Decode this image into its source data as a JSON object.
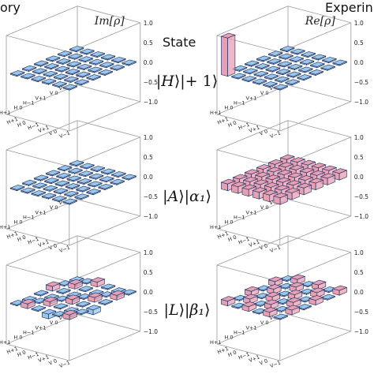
{
  "headers": {
    "left": "ory",
    "right": "Experin",
    "state_column": "State"
  },
  "colors": {
    "positive_bar": "#e6a0b4",
    "negative_bar": "#9ac6ec",
    "bar_edge": "#1a2a5a",
    "box_edge": "#9a9a9a"
  },
  "chart_data": [
    {
      "type": "bar3d",
      "panel": "Theory, row 1",
      "title": "Im[ρ]",
      "zlim": [
        -1.0,
        1.0
      ],
      "z_ticks": [
        "1.0",
        "0.5",
        "0.0",
        "−0.5",
        "−1.0"
      ],
      "x_ticks": [
        "H+1",
        "H 0",
        "H−1",
        "V+1",
        "V 0",
        "V−1"
      ],
      "y_ticks": [
        "H+1",
        "H 0",
        "H−1",
        "V+1",
        "V 0",
        "V−1"
      ],
      "values": [
        [
          0,
          0,
          0,
          0,
          0,
          0
        ],
        [
          0,
          0,
          0,
          0,
          0,
          0
        ],
        [
          0,
          0,
          0,
          0,
          0,
          0
        ],
        [
          0,
          0,
          0,
          0,
          0,
          0
        ],
        [
          0,
          0,
          0,
          0,
          0,
          0
        ],
        [
          0,
          0,
          0,
          0,
          0,
          0
        ]
      ]
    },
    {
      "type": "bar3d",
      "panel": "Experiment, row 1",
      "title": "Re[ρ]",
      "zlim": [
        -1.0,
        1.0
      ],
      "z_ticks": [
        "1.0",
        "0.5",
        "0.0",
        "−0.5",
        "−1.0"
      ],
      "x_ticks": [
        "H+1",
        "H 0",
        "H−1",
        "V+1",
        "V 0",
        "V−1"
      ],
      "y_ticks": [
        "H+1",
        "H 0",
        "H−1",
        "V+1",
        "V 0",
        "V−1"
      ],
      "values": [
        [
          0.97,
          0,
          0,
          0,
          0,
          0
        ],
        [
          0,
          0,
          0,
          0,
          0,
          0
        ],
        [
          0,
          0,
          0,
          0,
          0,
          0
        ],
        [
          0,
          0,
          0,
          0,
          0,
          0
        ],
        [
          0,
          0,
          0,
          0,
          0,
          0
        ],
        [
          0,
          0,
          0,
          0,
          0,
          0
        ]
      ]
    },
    {
      "type": "bar3d",
      "panel": "Theory, row 2",
      "zlim": [
        -1.0,
        1.0
      ],
      "z_ticks": [
        "1.0",
        "0.5",
        "0.0",
        "−0.5",
        "−1.0"
      ],
      "x_ticks": [
        "H+1",
        "H 0",
        "H−1",
        "V+1",
        "V 0",
        "V−1"
      ],
      "y_ticks": [
        "H+1",
        "H 0",
        "H−1",
        "V+1",
        "V 0",
        "V−1"
      ],
      "values": [
        [
          0,
          0,
          0,
          0,
          0,
          0
        ],
        [
          0,
          0,
          0,
          0,
          0,
          0
        ],
        [
          0,
          0,
          0,
          0,
          0,
          0
        ],
        [
          0,
          0,
          0,
          0,
          0,
          0
        ],
        [
          0,
          0,
          0,
          0,
          0,
          0
        ],
        [
          0,
          0,
          0,
          0,
          0,
          0
        ]
      ]
    },
    {
      "type": "bar3d",
      "panel": "Experiment, row 2",
      "zlim": [
        -1.0,
        1.0
      ],
      "z_ticks": [
        "1.0",
        "0.5",
        "0.0",
        "−0.5",
        "−1.0"
      ],
      "x_ticks": [
        "H+1",
        "H 0",
        "H−1",
        "V+1",
        "V 0",
        "V−1"
      ],
      "y_ticks": [
        "H+1",
        "H 0",
        "H−1",
        "V+1",
        "V 0",
        "V−1"
      ],
      "values": [
        [
          0.17,
          0.17,
          0.17,
          0.17,
          0.17,
          0.17
        ],
        [
          0.17,
          0.17,
          0.17,
          0.17,
          0.17,
          0.17
        ],
        [
          0.17,
          0.17,
          0.17,
          0.17,
          0.17,
          0.17
        ],
        [
          0.17,
          0.17,
          0.17,
          0.17,
          0.17,
          0.17
        ],
        [
          0.17,
          0.17,
          0.17,
          0.17,
          0.17,
          0.17
        ],
        [
          0.17,
          0.17,
          0.17,
          0.17,
          0.17,
          0.17
        ]
      ]
    },
    {
      "type": "bar3d",
      "panel": "Theory, row 3",
      "zlim": [
        -1.0,
        1.0
      ],
      "z_ticks": [
        "1.0",
        "0.5",
        "0.0",
        "−0.5",
        "−1.0"
      ],
      "x_ticks": [
        "H+1",
        "H 0",
        "H−1",
        "V+1",
        "V 0",
        "V−1"
      ],
      "y_ticks": [
        "H+1",
        "H 0",
        "H−1",
        "V+1",
        "V 0",
        "V−1"
      ],
      "values": [
        [
          0,
          0.12,
          0,
          -0.12,
          0,
          0.12
        ],
        [
          -0.12,
          0,
          0.12,
          0,
          -0.12,
          0
        ],
        [
          0,
          -0.12,
          0,
          0.12,
          0,
          -0.12
        ],
        [
          0.12,
          0,
          -0.12,
          0,
          0.12,
          0
        ],
        [
          0,
          0.12,
          0,
          -0.12,
          0,
          0.12
        ],
        [
          -0.12,
          0,
          0.12,
          0,
          -0.12,
          0
        ]
      ]
    },
    {
      "type": "bar3d",
      "panel": "Experiment, row 3",
      "zlim": [
        -1.0,
        1.0
      ],
      "z_ticks": [
        "1.0",
        "0.5",
        "0.0",
        "−0.5",
        "−1.0"
      ],
      "x_ticks": [
        "H+1",
        "H 0",
        "H−1",
        "V+1",
        "V 0",
        "V−1"
      ],
      "y_ticks": [
        "H+1",
        "H 0",
        "H−1",
        "V+1",
        "V 0",
        "V−1"
      ],
      "values": [
        [
          0.12,
          0,
          0.12,
          0,
          0.12,
          0
        ],
        [
          0,
          0.12,
          0,
          0.12,
          0,
          0.12
        ],
        [
          0.12,
          0,
          0.12,
          0,
          0.12,
          0
        ],
        [
          0,
          0.12,
          0,
          0.12,
          0,
          0.12
        ],
        [
          0.12,
          0,
          0.12,
          0,
          0.12,
          0
        ],
        [
          0,
          0.12,
          0,
          0.12,
          0,
          0.12
        ]
      ]
    }
  ],
  "states": [
    {
      "ket1": "H",
      "ket2": "+ 1"
    },
    {
      "ket1": "A",
      "ket2": "α₁"
    },
    {
      "ket1": "L",
      "ket2": "β₁"
    }
  ]
}
